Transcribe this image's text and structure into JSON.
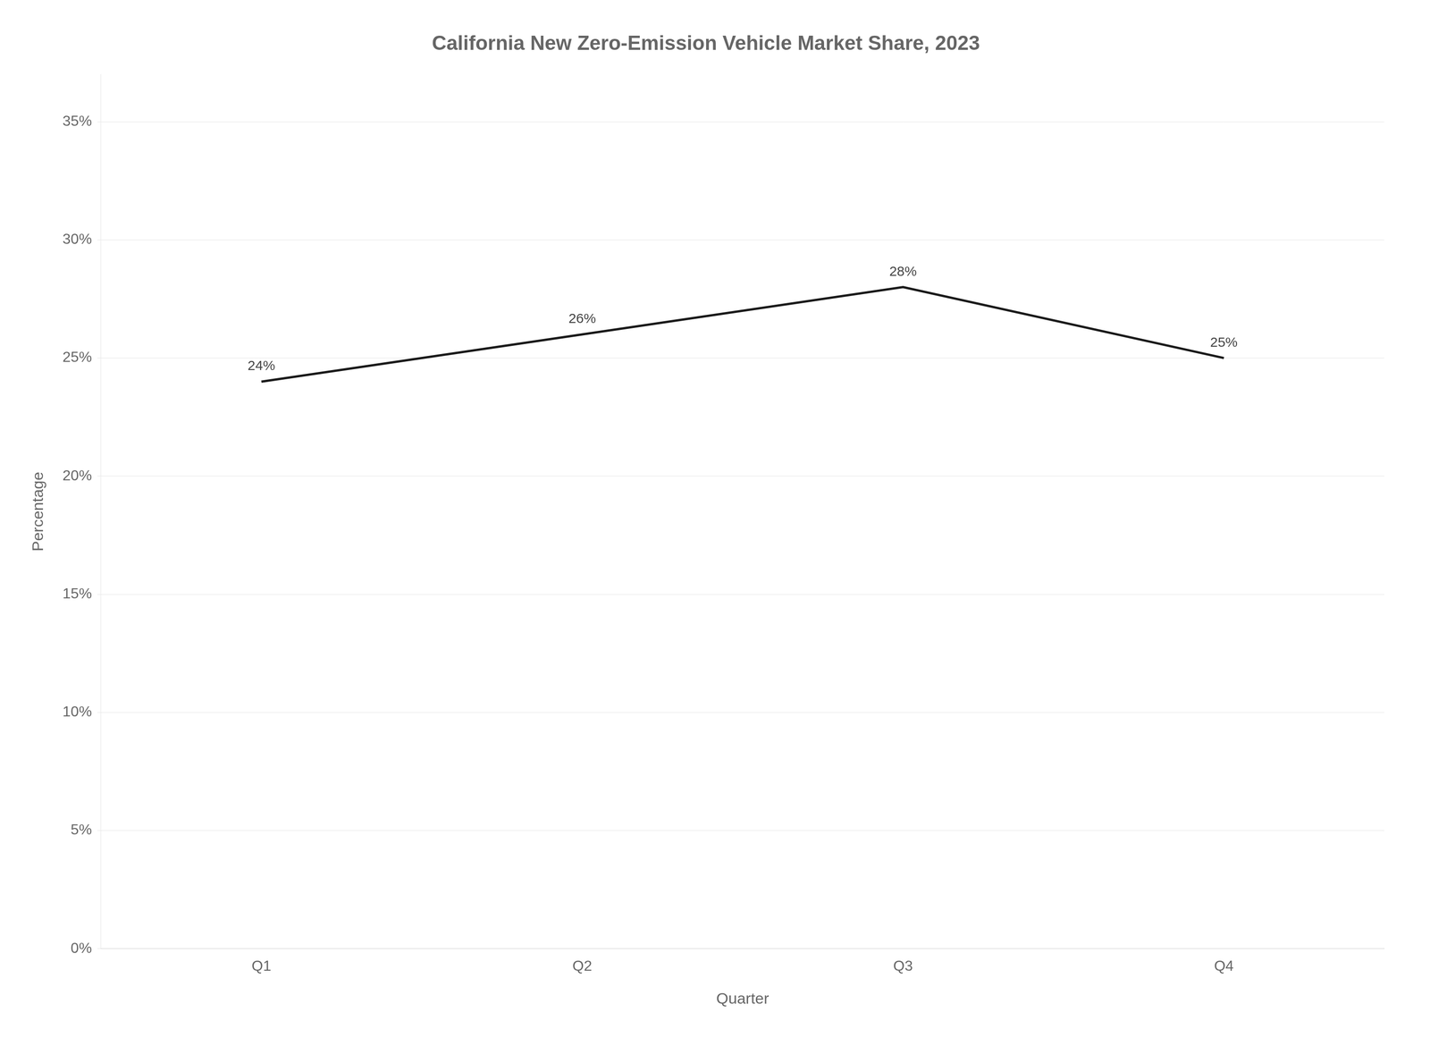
{
  "chart_data": {
    "type": "line",
    "title": "California New Zero-Emission Vehicle Market Share, 2023",
    "xlabel": "Quarter",
    "ylabel": "Percentage",
    "categories": [
      "Q1",
      "Q2",
      "Q3",
      "Q4"
    ],
    "values": [
      24,
      26,
      28,
      25
    ],
    "value_labels": [
      "24%",
      "26%",
      "28%",
      "25%"
    ],
    "color": "#1a1a1a",
    "marker": "none",
    "ylim": [
      0,
      37
    ],
    "yticks": [
      {
        "value": 0,
        "label": "0%"
      },
      {
        "value": 5,
        "label": "5%"
      },
      {
        "value": 10,
        "label": "10%"
      },
      {
        "value": 15,
        "label": "15%"
      },
      {
        "value": 20,
        "label": "20%"
      },
      {
        "value": 25,
        "label": "25%"
      },
      {
        "value": 30,
        "label": "30%"
      },
      {
        "value": 35,
        "label": "35%"
      }
    ],
    "grid": "y",
    "data_labels": true
  }
}
